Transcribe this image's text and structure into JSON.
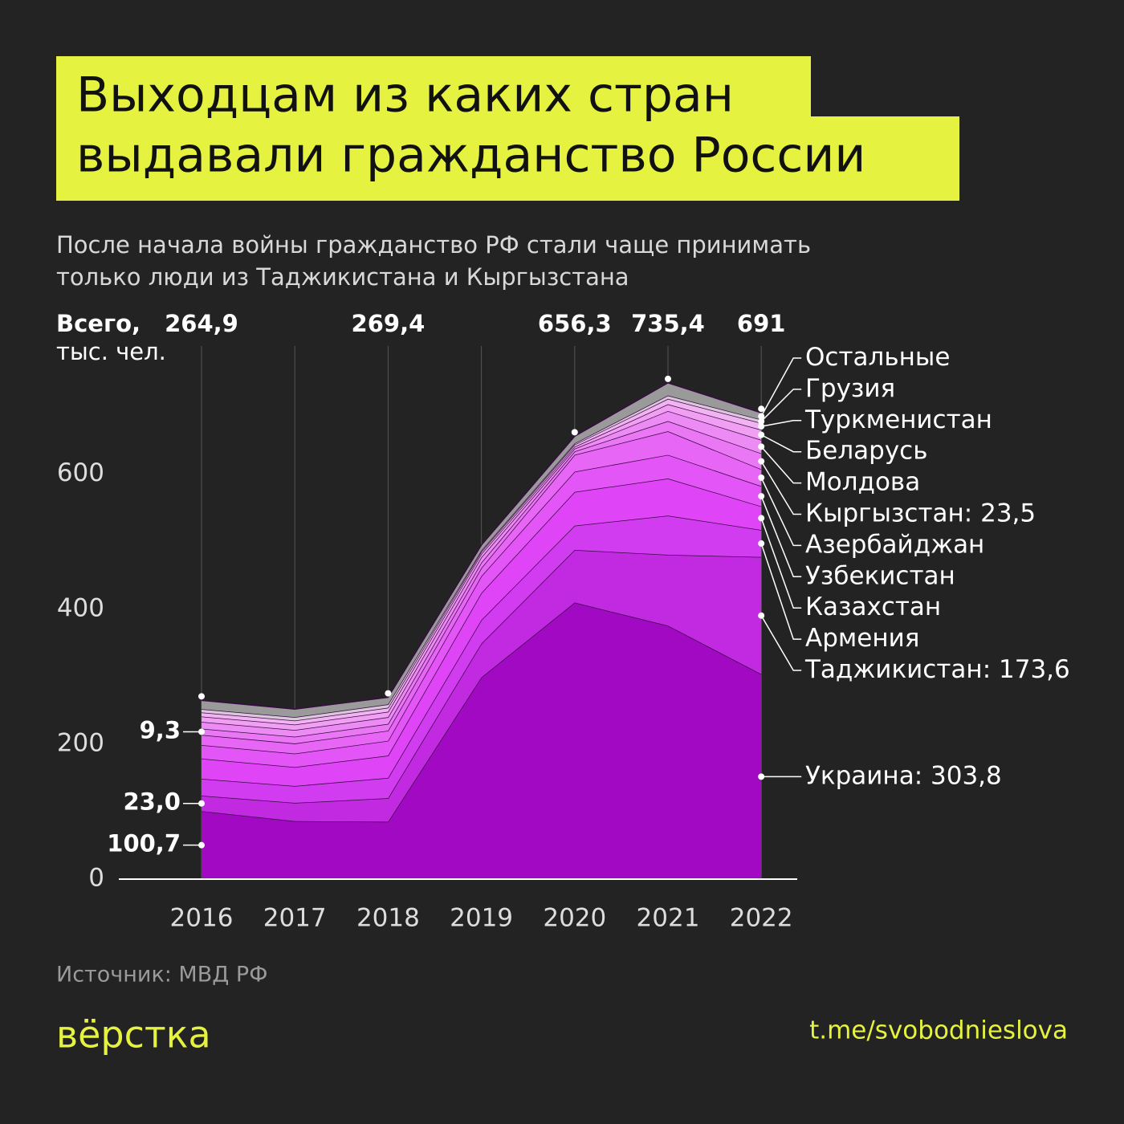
{
  "chart_data": {
    "type": "stacked-area",
    "title_lines": [
      "Выходцам из каких стран",
      "выдавали гражданство России"
    ],
    "subtitle_lines": [
      "После начала войны гражданство РФ стали чаще принимать",
      "только люди из Таджикистана и Кыргызстана"
    ],
    "y_label_lines": [
      "Всего,",
      "тыс. чел."
    ],
    "categories": [
      "2016",
      "2017",
      "2018",
      "2019",
      "2020",
      "2021",
      "2022"
    ],
    "total_labels": [
      "264,9",
      null,
      "269,4",
      null,
      "656,3",
      "735,4",
      "691"
    ],
    "totals": [
      264.9,
      null,
      269.4,
      null,
      656.3,
      735.4,
      691
    ],
    "ylim": [
      0,
      790
    ],
    "yticks": [
      0,
      200,
      400,
      600
    ],
    "label_separator": ": ",
    "series": [
      {
        "name": "Украина",
        "color": "#a10ac2",
        "values": [
          100.7,
          86,
          85,
          299,
          409.8,
          375.7,
          303.8
        ],
        "value_labels": [
          "100,7",
          null,
          null,
          null,
          null,
          null,
          "303,8"
        ]
      },
      {
        "name": "Таджикистан",
        "color": "#c22ae2",
        "values": [
          23.0,
          27,
          35,
          50,
          78,
          105,
          173.6
        ],
        "value_labels": [
          "23,0",
          null,
          null,
          null,
          null,
          null,
          "173,6"
        ]
      },
      {
        "name": "Армения",
        "color": "#d23cf0",
        "values": [
          25,
          25,
          30,
          35,
          36,
          58,
          40
        ]
      },
      {
        "name": "Казахстан",
        "color": "#df45f7",
        "values": [
          30,
          28,
          33,
          40,
          50,
          55,
          35
        ]
      },
      {
        "name": "Узбекистан",
        "color": "#e455f7",
        "values": [
          20,
          20,
          22,
          25,
          30,
          35,
          30
        ]
      },
      {
        "name": "Азербайджан",
        "color": "#e766f6",
        "values": [
          15,
          15,
          15,
          12,
          25,
          35,
          25
        ]
      },
      {
        "name": "Кыргызстан",
        "color": "#ea78f5",
        "values": [
          9.3,
          10,
          10,
          8,
          5,
          15,
          23.5
        ],
        "value_labels": [
          "9,3",
          null,
          null,
          null,
          null,
          null,
          "23,5"
        ]
      },
      {
        "name": "Молдова",
        "color": "#ed8bf4",
        "values": [
          10,
          10,
          10,
          8,
          4,
          15,
          20
        ]
      },
      {
        "name": "Беларусь",
        "color": "#f09ff3",
        "values": [
          8,
          8,
          8,
          5,
          3,
          10,
          15
        ]
      },
      {
        "name": "Туркменистан",
        "color": "#f2b3f2",
        "values": [
          6,
          6,
          6,
          3,
          3,
          8,
          10
        ]
      },
      {
        "name": "Грузия",
        "color": "#d9c8d9",
        "values": [
          5,
          5,
          5,
          2,
          2,
          5,
          5
        ]
      },
      {
        "name": "Остальные",
        "color": "#9a9a9a",
        "values": [
          12.9,
          12,
          10.4,
          8,
          10.5,
          18.7,
          10.1
        ]
      }
    ],
    "source": "Источник: МВД РФ",
    "brand": "вёрстка",
    "link": "t.me/svobodnieslova"
  }
}
